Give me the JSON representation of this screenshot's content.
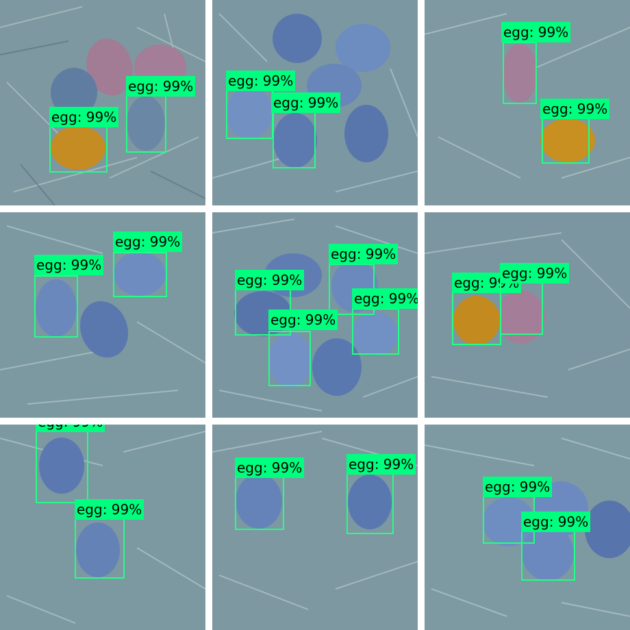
{
  "detections": {
    "label": "egg: 99%"
  },
  "colors": {
    "box": "#22ff88",
    "label_bg": "#00ff7f",
    "hay": "#7b97a0",
    "egg_blue": "#5f7cb2",
    "egg_pink": "#a87e98",
    "egg_gold": "#c98f1e"
  },
  "tiles": [
    {
      "name": "tile-1",
      "egg_colors": [
        "pink",
        "pink",
        "blue",
        "blue",
        "gold"
      ],
      "detection_count": 2
    },
    {
      "name": "tile-2",
      "egg_colors": [
        "blue",
        "blue",
        "blue",
        "blue",
        "blue",
        "blue"
      ],
      "detection_count": 2
    },
    {
      "name": "tile-3",
      "egg_colors": [
        "pink",
        "gold"
      ],
      "detection_count": 2
    },
    {
      "name": "tile-4",
      "egg_colors": [
        "blue",
        "blue",
        "blue"
      ],
      "detection_count": 2
    },
    {
      "name": "tile-5",
      "egg_colors": [
        "blue",
        "blue",
        "blue",
        "blue",
        "blue",
        "blue"
      ],
      "detection_count": 4
    },
    {
      "name": "tile-6",
      "egg_colors": [
        "gold",
        "pink"
      ],
      "detection_count": 2
    },
    {
      "name": "tile-7",
      "egg_colors": [
        "blue",
        "blue"
      ],
      "detection_count": 2
    },
    {
      "name": "tile-8",
      "egg_colors": [
        "blue",
        "blue"
      ],
      "detection_count": 2
    },
    {
      "name": "tile-9",
      "egg_colors": [
        "blue",
        "blue",
        "blue",
        "blue"
      ],
      "detection_count": 2
    }
  ]
}
